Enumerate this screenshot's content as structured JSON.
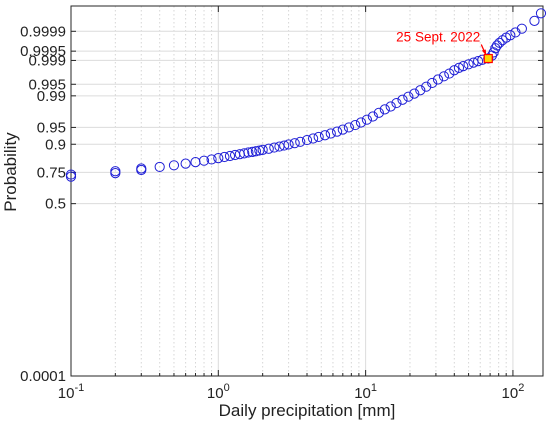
{
  "chart_data": {
    "type": "scatter",
    "title": "",
    "xlabel": "Daily precipitation [mm]",
    "ylabel": "Probability",
    "xscale": "log",
    "yscale": "normal-probability",
    "xlim": [
      0.1,
      160
    ],
    "ylim": [
      0.0001,
      0.99999
    ],
    "grid": true,
    "x_ticks": [
      {
        "value": 0.1,
        "base": "10",
        "exp": "-1"
      },
      {
        "value": 1,
        "base": "10",
        "exp": "0"
      },
      {
        "value": 10,
        "base": "10",
        "exp": "1"
      },
      {
        "value": 100,
        "base": "10",
        "exp": "2"
      }
    ],
    "y_ticks": [
      {
        "value": 0.0001,
        "label": "0.0001"
      },
      {
        "value": 0.5,
        "label": "0.5"
      },
      {
        "value": 0.75,
        "label": "0.75"
      },
      {
        "value": 0.9,
        "label": "0.9"
      },
      {
        "value": 0.95,
        "label": "0.95"
      },
      {
        "value": 0.99,
        "label": "0.99"
      },
      {
        "value": 0.995,
        "label": "0.995"
      },
      {
        "value": 0.999,
        "label": "0.999"
      },
      {
        "value": 0.9995,
        "label": "0.9995"
      },
      {
        "value": 0.9999,
        "label": "0.9999"
      }
    ],
    "marker_color": "#1f1fd6",
    "highlight_color": "#ff0000",
    "highlight_fill": "#ffd700",
    "series": [
      {
        "marker": "open-circle",
        "points": [
          [
            0.1,
            0.72
          ],
          [
            0.1,
            0.735
          ],
          [
            0.2,
            0.745
          ],
          [
            0.2,
            0.758
          ],
          [
            0.3,
            0.766
          ],
          [
            0.3,
            0.776
          ],
          [
            0.4,
            0.786
          ],
          [
            0.5,
            0.796
          ],
          [
            0.6,
            0.806
          ],
          [
            0.7,
            0.815
          ],
          [
            0.8,
            0.823
          ],
          [
            0.9,
            0.83
          ],
          [
            1.0,
            0.837
          ],
          [
            1.1,
            0.843
          ],
          [
            1.2,
            0.848
          ],
          [
            1.3,
            0.853
          ],
          [
            1.4,
            0.857
          ],
          [
            1.5,
            0.861
          ],
          [
            1.6,
            0.865
          ],
          [
            1.7,
            0.868
          ],
          [
            1.8,
            0.871
          ],
          [
            1.9,
            0.874
          ],
          [
            2.0,
            0.877
          ],
          [
            2.2,
            0.882
          ],
          [
            2.4,
            0.887
          ],
          [
            2.6,
            0.891
          ],
          [
            2.8,
            0.895
          ],
          [
            3.0,
            0.899
          ],
          [
            3.3,
            0.904
          ],
          [
            3.6,
            0.909
          ],
          [
            4.0,
            0.915
          ],
          [
            4.4,
            0.92
          ],
          [
            4.8,
            0.925
          ],
          [
            5.3,
            0.93
          ],
          [
            5.8,
            0.935
          ],
          [
            6.4,
            0.94
          ],
          [
            7.0,
            0.945
          ],
          [
            7.7,
            0.95
          ],
          [
            8.5,
            0.955
          ],
          [
            9.3,
            0.96
          ],
          [
            10.2,
            0.965
          ],
          [
            11.2,
            0.97
          ],
          [
            12.3,
            0.975
          ],
          [
            13.5,
            0.979
          ],
          [
            14.8,
            0.982
          ],
          [
            16.2,
            0.985
          ],
          [
            17.8,
            0.9875
          ],
          [
            19.5,
            0.9895
          ],
          [
            21.4,
            0.9912
          ],
          [
            23.5,
            0.9928
          ],
          [
            25.8,
            0.9942
          ],
          [
            28.3,
            0.9954
          ],
          [
            31,
            0.9963
          ],
          [
            34,
            0.997
          ],
          [
            37,
            0.9975
          ],
          [
            40,
            0.998
          ],
          [
            43,
            0.9983
          ],
          [
            46,
            0.9985
          ],
          [
            50,
            0.99868
          ],
          [
            54,
            0.99883
          ],
          [
            58,
            0.99895
          ],
          [
            62,
            0.99905
          ],
          [
            68,
            0.99913
          ],
          [
            72,
            0.9993
          ],
          [
            74,
            0.99945
          ],
          [
            76,
            0.9996
          ],
          [
            78,
            0.99968
          ],
          [
            81,
            0.99974
          ],
          [
            85,
            0.99979
          ],
          [
            90,
            0.99983
          ],
          [
            96,
            0.99986
          ],
          [
            104,
            0.99989
          ],
          [
            115,
            0.99992
          ],
          [
            140,
            0.99996
          ],
          [
            155,
            0.99998
          ]
        ]
      }
    ],
    "highlight": {
      "x": 68,
      "y": 0.99913,
      "label": "25 Sept. 2022"
    }
  }
}
